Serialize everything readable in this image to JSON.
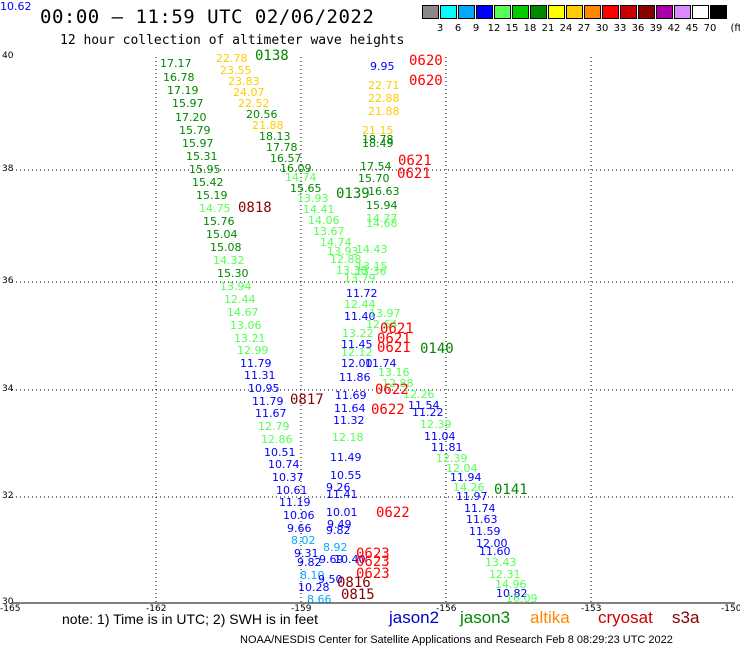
{
  "title": "00:00 – 11:59 UTC 02/06/2022",
  "subtitle": "12 hour collection of altimeter wave heights",
  "scale": {
    "unit_label": "(ft)",
    "bins": [
      {
        "label": "3",
        "color": "#888888"
      },
      {
        "label": "6",
        "color": "#00ffff"
      },
      {
        "label": "9",
        "color": "#00aaff"
      },
      {
        "label": "12",
        "color": "#0000ff"
      },
      {
        "label": "15",
        "color": "#55ff55"
      },
      {
        "label": "18",
        "color": "#00cc00"
      },
      {
        "label": "21",
        "color": "#008800"
      },
      {
        "label": "24",
        "color": "#ffff00"
      },
      {
        "label": "27",
        "color": "#ffcc00"
      },
      {
        "label": "30",
        "color": "#ff8800"
      },
      {
        "label": "33",
        "color": "#ff0000"
      },
      {
        "label": "36",
        "color": "#cc0000"
      },
      {
        "label": "39",
        "color": "#880000"
      },
      {
        "label": "42",
        "color": "#aa00aa"
      },
      {
        "label": "45",
        "color": "#dd88ff"
      },
      {
        "label": "70",
        "color": "#ffffff"
      },
      {
        "label": "",
        "color": "#000000"
      }
    ]
  },
  "axes": {
    "lat_labels": [
      "40",
      "38",
      "36",
      "34",
      "32",
      "30"
    ],
    "lon_labels": [
      "-165",
      "-162",
      "-159",
      "-156",
      "-153",
      "-150"
    ]
  },
  "pass_times": [
    {
      "text": "0138",
      "color": "#008800"
    },
    {
      "text": "0620",
      "color": "#ff0000"
    },
    {
      "text": "0620",
      "color": "#ff0000"
    },
    {
      "text": "0621",
      "color": "#ff0000"
    },
    {
      "text": "0621",
      "color": "#ff0000"
    },
    {
      "text": "0139",
      "color": "#008800"
    },
    {
      "text": "0818",
      "color": "#880000"
    },
    {
      "text": "0621",
      "color": "#ff0000"
    },
    {
      "text": "0621",
      "color": "#ff0000"
    },
    {
      "text": "0621",
      "color": "#ff0000"
    },
    {
      "text": "0140",
      "color": "#008800"
    },
    {
      "text": "0622",
      "color": "#ff0000"
    },
    {
      "text": "0817",
      "color": "#880000"
    },
    {
      "text": "0622",
      "color": "#ff0000"
    },
    {
      "text": "0622",
      "color": "#ff0000"
    },
    {
      "text": "0141",
      "color": "#008800"
    },
    {
      "text": "0623",
      "color": "#ff0000"
    },
    {
      "text": "0623",
      "color": "#ff0000"
    },
    {
      "text": "0623",
      "color": "#ff0000"
    },
    {
      "text": "0816",
      "color": "#880000"
    },
    {
      "text": "0815",
      "color": "#880000"
    }
  ],
  "wave_heights": [
    {
      "v": "17.17",
      "c": "#008800"
    },
    {
      "v": "16.78",
      "c": "#008800"
    },
    {
      "v": "17.19",
      "c": "#008800"
    },
    {
      "v": "15.97",
      "c": "#008800"
    },
    {
      "v": "17.20",
      "c": "#008800"
    },
    {
      "v": "15.79",
      "c": "#008800"
    },
    {
      "v": "15.97",
      "c": "#008800"
    },
    {
      "v": "15.31",
      "c": "#008800"
    },
    {
      "v": "15.95",
      "c": "#008800"
    },
    {
      "v": "15.42",
      "c": "#008800"
    },
    {
      "v": "15.19",
      "c": "#008800"
    },
    {
      "v": "14.75",
      "c": "#55ff55"
    },
    {
      "v": "15.76",
      "c": "#008800"
    },
    {
      "v": "15.04",
      "c": "#008800"
    },
    {
      "v": "15.08",
      "c": "#008800"
    },
    {
      "v": "14.32",
      "c": "#55ff55"
    },
    {
      "v": "15.30",
      "c": "#008800"
    },
    {
      "v": "13.94",
      "c": "#55ff55"
    },
    {
      "v": "12.44",
      "c": "#55ff55"
    },
    {
      "v": "14.67",
      "c": "#55ff55"
    },
    {
      "v": "13.06",
      "c": "#55ff55"
    },
    {
      "v": "13.21",
      "c": "#55ff55"
    },
    {
      "v": "12.99",
      "c": "#55ff55"
    },
    {
      "v": "11.79",
      "c": "#0000ff"
    },
    {
      "v": "11.31",
      "c": "#0000ff"
    },
    {
      "v": "10.95",
      "c": "#0000ff"
    },
    {
      "v": "11.79",
      "c": "#0000ff"
    },
    {
      "v": "11.67",
      "c": "#0000ff"
    },
    {
      "v": "12.79",
      "c": "#55ff55"
    },
    {
      "v": "12.86",
      "c": "#55ff55"
    },
    {
      "v": "10.51",
      "c": "#0000ff"
    },
    {
      "v": "10.74",
      "c": "#0000ff"
    },
    {
      "v": "10.37",
      "c": "#0000ff"
    },
    {
      "v": "10.61",
      "c": "#0000ff"
    },
    {
      "v": "11.19",
      "c": "#0000ff"
    },
    {
      "v": "10.06",
      "c": "#0000ff"
    },
    {
      "v": "9.66",
      "c": "#0000ff"
    },
    {
      "v": "8.02",
      "c": "#00aaff"
    },
    {
      "v": "9.31",
      "c": "#0000ff"
    },
    {
      "v": "9.82",
      "c": "#0000ff"
    },
    {
      "v": "8.10",
      "c": "#00aaff"
    },
    {
      "v": "10.28",
      "c": "#0000ff"
    },
    {
      "v": "8.66",
      "c": "#00aaff"
    },
    {
      "v": "22.78",
      "c": "#ffcc00"
    },
    {
      "v": "23.55",
      "c": "#ffcc00"
    },
    {
      "v": "23.83",
      "c": "#ffcc00"
    },
    {
      "v": "24.07",
      "c": "#ffcc00"
    },
    {
      "v": "22.52",
      "c": "#ffcc00"
    },
    {
      "v": "20.56",
      "c": "#008800"
    },
    {
      "v": "21.88",
      "c": "#ffcc00"
    },
    {
      "v": "18.13",
      "c": "#008800"
    },
    {
      "v": "17.78",
      "c": "#008800"
    },
    {
      "v": "16.57",
      "c": "#008800"
    },
    {
      "v": "16.09",
      "c": "#008800"
    },
    {
      "v": "14.74",
      "c": "#55ff55"
    },
    {
      "v": "15.65",
      "c": "#008800"
    },
    {
      "v": "13.93",
      "c": "#55ff55"
    },
    {
      "v": "14.41",
      "c": "#55ff55"
    },
    {
      "v": "14.06",
      "c": "#55ff55"
    },
    {
      "v": "13.67",
      "c": "#55ff55"
    },
    {
      "v": "14.74",
      "c": "#55ff55"
    },
    {
      "v": "13.93",
      "c": "#55ff55"
    },
    {
      "v": "12.88",
      "c": "#55ff55"
    },
    {
      "v": "13.38",
      "c": "#55ff55"
    },
    {
      "v": "13.79",
      "c": "#55ff55"
    },
    {
      "v": "11.72",
      "c": "#0000ff"
    },
    {
      "v": "12.44",
      "c": "#55ff55"
    },
    {
      "v": "11.40",
      "c": "#0000ff"
    },
    {
      "v": "13.22",
      "c": "#55ff55"
    },
    {
      "v": "11.45",
      "c": "#0000ff"
    },
    {
      "v": "12.12",
      "c": "#55ff55"
    },
    {
      "v": "12.00",
      "c": "#0000ff"
    },
    {
      "v": "11.74",
      "c": "#0000ff"
    },
    {
      "v": "11.86",
      "c": "#0000ff"
    },
    {
      "v": "11.69",
      "c": "#0000ff"
    },
    {
      "v": "11.64",
      "c": "#0000ff"
    },
    {
      "v": "11.32",
      "c": "#0000ff"
    },
    {
      "v": "12.18",
      "c": "#55ff55"
    },
    {
      "v": "11.49",
      "c": "#0000ff"
    },
    {
      "v": "10.55",
      "c": "#0000ff"
    },
    {
      "v": "9.26",
      "c": "#0000ff"
    },
    {
      "v": "11.41",
      "c": "#0000ff"
    },
    {
      "v": "10.01",
      "c": "#0000ff"
    },
    {
      "v": "9.49",
      "c": "#0000ff"
    },
    {
      "v": "9.82",
      "c": "#0000ff"
    },
    {
      "v": "8.92",
      "c": "#00aaff"
    },
    {
      "v": "9.69",
      "c": "#0000ff"
    },
    {
      "v": "10.40",
      "c": "#0000ff"
    },
    {
      "v": "9.50",
      "c": "#0000ff"
    },
    {
      "v": "9.95",
      "c": "#0000ff"
    },
    {
      "v": "22.71",
      "c": "#ffcc00"
    },
    {
      "v": "22.88",
      "c": "#ffcc00"
    },
    {
      "v": "21.88",
      "c": "#ffcc00"
    },
    {
      "v": "21.15",
      "c": "#ffcc00"
    },
    {
      "v": "18.78",
      "c": "#008800"
    },
    {
      "v": "18.49",
      "c": "#008800"
    },
    {
      "v": "17.54",
      "c": "#008800"
    },
    {
      "v": "15.70",
      "c": "#008800"
    },
    {
      "v": "16.63",
      "c": "#008800"
    },
    {
      "v": "15.94",
      "c": "#008800"
    },
    {
      "v": "14.77",
      "c": "#55ff55"
    },
    {
      "v": "14.68",
      "c": "#55ff55"
    },
    {
      "v": "14.43",
      "c": "#55ff55"
    },
    {
      "v": "13.15",
      "c": "#55ff55"
    },
    {
      "v": "13.36",
      "c": "#55ff55"
    },
    {
      "v": "13.97",
      "c": "#55ff55"
    },
    {
      "v": "12.64",
      "c": "#55ff55"
    },
    {
      "v": "13.16",
      "c": "#55ff55"
    },
    {
      "v": "12.88",
      "c": "#55ff55"
    },
    {
      "v": "12.26",
      "c": "#55ff55"
    },
    {
      "v": "11.54",
      "c": "#0000ff"
    },
    {
      "v": "11.22",
      "c": "#0000ff"
    },
    {
      "v": "12.39",
      "c": "#55ff55"
    },
    {
      "v": "11.04",
      "c": "#0000ff"
    },
    {
      "v": "11.81",
      "c": "#0000ff"
    },
    {
      "v": "12.39",
      "c": "#55ff55"
    },
    {
      "v": "12.04",
      "c": "#55ff55"
    },
    {
      "v": "11.94",
      "c": "#0000ff"
    },
    {
      "v": "14.26",
      "c": "#55ff55"
    },
    {
      "v": "11.97",
      "c": "#0000ff"
    },
    {
      "v": "11.74",
      "c": "#0000ff"
    },
    {
      "v": "11.63",
      "c": "#0000ff"
    },
    {
      "v": "11.59",
      "c": "#0000ff"
    },
    {
      "v": "12.00",
      "c": "#0000ff"
    },
    {
      "v": "11.60",
      "c": "#0000ff"
    },
    {
      "v": "13.43",
      "c": "#55ff55"
    },
    {
      "v": "12.31",
      "c": "#55ff55"
    },
    {
      "v": "14.96",
      "c": "#55ff55"
    },
    {
      "v": "10.82",
      "c": "#0000ff"
    },
    {
      "v": "16.09",
      "c": "#55ff55"
    },
    {
      "v": "10.62",
      "c": "#0000ff"
    }
  ],
  "note": "note:  1) Time is in UTC;  2) SWH is in feet",
  "legend": [
    {
      "label": "jason2",
      "color": "#0000cc"
    },
    {
      "label": "jason3",
      "color": "#008800"
    },
    {
      "label": "altika",
      "color": "#ff8800"
    },
    {
      "label": "cryosat",
      "color": "#cc0000"
    },
    {
      "label": "s3a",
      "color": "#880000"
    }
  ],
  "footer": "NOAA/NESDIS Center for Satellite Applications and Research    Feb  8 08:29:23 UTC 2022"
}
